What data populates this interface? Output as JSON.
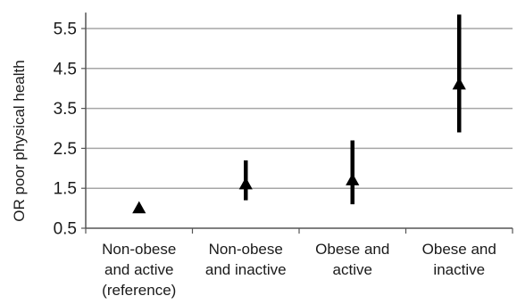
{
  "chart_data": {
    "type": "scatter",
    "title": "",
    "xlabel": "",
    "ylabel": "OR poor physical health",
    "ylim": [
      0.5,
      5.9
    ],
    "yticks": [
      0.5,
      1.5,
      2.5,
      3.5,
      4.5,
      5.5
    ],
    "ytick_labels": [
      "0.5",
      "1.5",
      "2.5",
      "3.5",
      "4.5",
      "5.5"
    ],
    "grid": true,
    "legend": "none",
    "marker": "triangle",
    "colors": {
      "marker": "#000000",
      "error_bar": "#000000",
      "grid": "#a6a6a6",
      "axis": "#555555"
    },
    "categories": [
      [
        "Non-obese",
        "and active",
        "(reference)"
      ],
      [
        "Non-obese",
        "and inactive"
      ],
      [
        "Obese and",
        "active"
      ],
      [
        "Obese and",
        "inactive"
      ]
    ],
    "points": [
      {
        "value": 1.0,
        "low": 1.0,
        "high": 1.0
      },
      {
        "value": 1.6,
        "low": 1.2,
        "high": 2.2
      },
      {
        "value": 1.7,
        "low": 1.1,
        "high": 2.7
      },
      {
        "value": 4.1,
        "low": 2.9,
        "high": 5.85
      }
    ]
  }
}
